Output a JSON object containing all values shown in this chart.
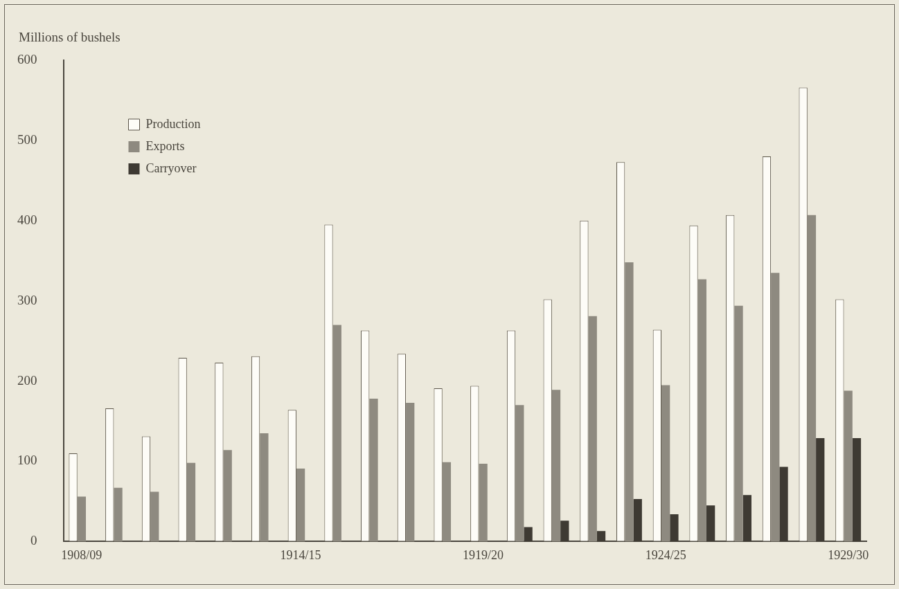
{
  "chart_data": {
    "type": "bar",
    "ylabel": "Millions of bushels",
    "categories": [
      "1908/09",
      null,
      null,
      null,
      null,
      null,
      "1914/15",
      null,
      null,
      null,
      null,
      "1919/20",
      null,
      null,
      null,
      null,
      "1924/25",
      null,
      null,
      null,
      null,
      "1929/30"
    ],
    "series": [
      {
        "name": "Production",
        "color": "#fdfcf7",
        "values": [
          110,
          166,
          131,
          229,
          223,
          231,
          164,
          395,
          263,
          234,
          191,
          194,
          263,
          302,
          400,
          473,
          264,
          394,
          407,
          480,
          566,
          302
        ]
      },
      {
        "name": "Exports",
        "color": "#8e8a80",
        "values": [
          56,
          67,
          62,
          98,
          114,
          135,
          91,
          270,
          178,
          173,
          99,
          97,
          170,
          189,
          281,
          348,
          195,
          327,
          294,
          335,
          407,
          188
        ]
      },
      {
        "name": "Carryover",
        "color": "#3e3a33",
        "values": [
          null,
          null,
          null,
          null,
          null,
          null,
          null,
          null,
          null,
          null,
          null,
          null,
          18,
          26,
          13,
          53,
          34,
          45,
          58,
          93,
          129,
          129
        ]
      }
    ],
    "ylim": [
      0,
      600
    ],
    "yticks": [
      0,
      100,
      200,
      300,
      400,
      500,
      600
    ],
    "grid": false,
    "legend": "top left"
  }
}
